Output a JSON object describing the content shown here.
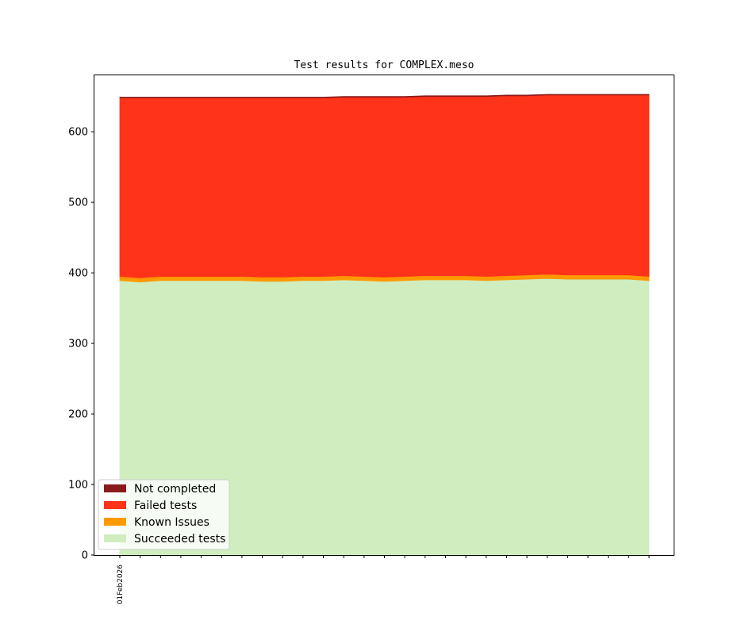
{
  "chart_data": {
    "type": "area",
    "title": "Test results for COMPLEX.meso",
    "xlabel": "",
    "ylabel": "",
    "ylim": [
      0,
      680
    ],
    "yticks": [
      0,
      100,
      200,
      300,
      400,
      500,
      600
    ],
    "x": [
      "01Feb2026",
      "",
      "",
      "",
      "",
      "",
      "",
      "",
      "",
      "",
      "",
      "",
      "",
      "",
      "",
      "",
      "",
      "",
      "",
      "",
      "",
      "",
      "",
      "",
      "",
      "",
      ""
    ],
    "stacked": true,
    "legend_position": "lower-left",
    "grid": false,
    "series": [
      {
        "name": "Succeeded tests",
        "color": "#d0edc0",
        "values": [
          389,
          387,
          389,
          389,
          389,
          389,
          389,
          388,
          388,
          389,
          389,
          390,
          389,
          388,
          389,
          390,
          390,
          390,
          389,
          390,
          391,
          392,
          391,
          391,
          391,
          391,
          389
        ]
      },
      {
        "name": "Known Issues",
        "color": "#ff9900",
        "values": [
          6,
          6,
          6,
          6,
          6,
          6,
          6,
          6,
          6,
          6,
          6,
          6,
          6,
          6,
          6,
          6,
          6,
          6,
          6,
          6,
          6,
          6,
          6,
          6,
          6,
          6,
          6
        ]
      },
      {
        "name": "Failed tests",
        "color": "#ff3319",
        "values": [
          253,
          255,
          253,
          253,
          253,
          253,
          253,
          254,
          254,
          253,
          253,
          253,
          254,
          255,
          254,
          254,
          254,
          254,
          255,
          255,
          254,
          254,
          255,
          255,
          255,
          255,
          257
        ]
      },
      {
        "name": "Not completed",
        "color": "#8b1a1a",
        "values": [
          1,
          1,
          1,
          1,
          1,
          1,
          1,
          1,
          1,
          1,
          1,
          1,
          1,
          1,
          1,
          1,
          1,
          1,
          1,
          1,
          1,
          1,
          1,
          1,
          1,
          1,
          1
        ]
      }
    ]
  }
}
